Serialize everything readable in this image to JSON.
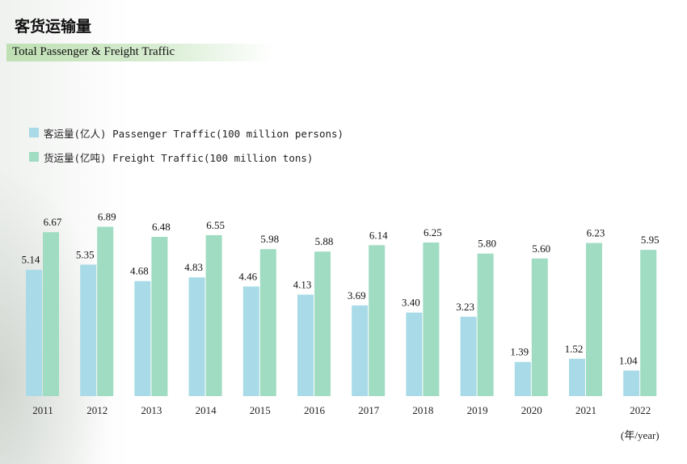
{
  "header": {
    "title_cn": "客货运输量",
    "subtitle_en": "Total Passenger & Freight Traffic"
  },
  "chart_data": {
    "type": "bar",
    "categories": [
      "2011",
      "2012",
      "2013",
      "2014",
      "2015",
      "2016",
      "2017",
      "2018",
      "2019",
      "2020",
      "2021",
      "2022"
    ],
    "series": [
      {
        "name": "客运量(亿人) Passenger Traffic(100 million persons)",
        "color": "#a8dbe7",
        "values": [
          5.14,
          5.35,
          4.68,
          4.83,
          4.46,
          4.13,
          3.69,
          3.4,
          3.23,
          1.39,
          1.52,
          1.04
        ],
        "labels": [
          "5.14",
          "5.35",
          "4.68",
          "4.83",
          "4.46",
          "4.13",
          "3.69",
          "3.40",
          "3.23",
          "1.39",
          "1.52",
          "1.04"
        ]
      },
      {
        "name": "货运量(亿吨) Freight Traffic(100 million tons)",
        "color": "#9fdcc2",
        "values": [
          6.67,
          6.89,
          6.48,
          6.55,
          5.98,
          5.88,
          6.14,
          6.25,
          5.8,
          5.6,
          6.23,
          5.95
        ],
        "labels": [
          "6.67",
          "6.89",
          "6.48",
          "6.55",
          "5.98",
          "5.88",
          "6.14",
          "6.25",
          "5.80",
          "5.60",
          "6.23",
          "5.95"
        ]
      }
    ],
    "xunit": "(年/year)",
    "ylim": [
      0,
      7
    ],
    "grid": false,
    "legend_position": "top-left"
  }
}
